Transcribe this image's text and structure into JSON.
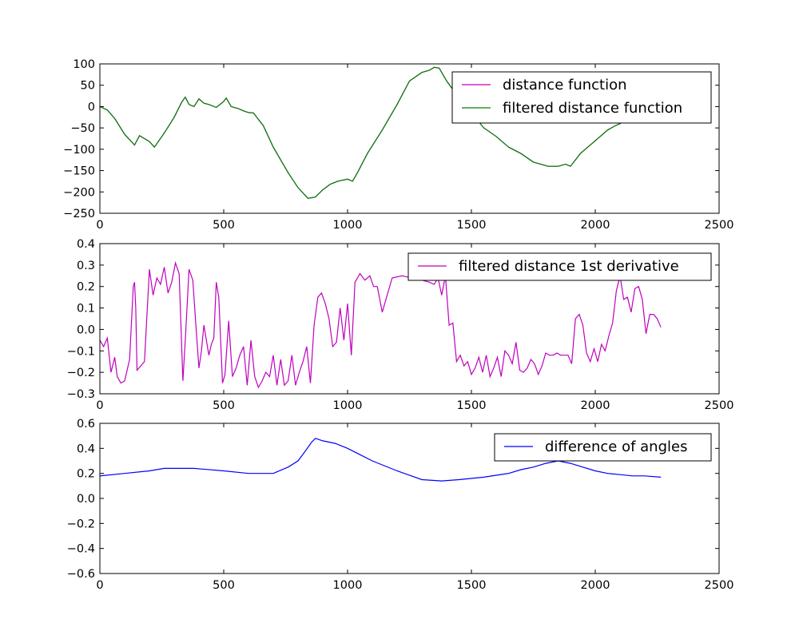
{
  "chart_data": [
    {
      "type": "line",
      "title": "",
      "xlabel": "",
      "ylabel": "",
      "xlim": [
        0,
        2500
      ],
      "ylim": [
        -250,
        100
      ],
      "xticks": [
        "0",
        "500",
        "1000",
        "1500",
        "2000",
        "2500"
      ],
      "yticks": [
        "100",
        "50",
        "0",
        "−50",
        "−100",
        "−150",
        "−200",
        "−250"
      ],
      "legend_position": "top-right",
      "grid": false,
      "series": [
        {
          "name": "distance function",
          "color": "#bf00bf",
          "x": [
            0,
            30,
            60,
            100,
            140,
            160,
            200,
            220,
            260,
            300,
            330,
            345,
            360,
            380,
            400,
            420,
            440,
            470,
            500,
            510,
            530,
            560,
            580,
            600,
            620,
            660,
            700,
            760,
            800,
            840,
            870,
            900,
            930,
            960,
            1000,
            1020,
            1040,
            1080,
            1140,
            1200,
            1250,
            1300,
            1330,
            1350,
            1370,
            1400,
            1450,
            1500,
            1550,
            1600,
            1650,
            1700,
            1750,
            1780,
            1810,
            1850,
            1880,
            1900,
            1940,
            2000,
            2050,
            2080,
            2100,
            2150,
            2200,
            2260
          ],
          "y": [
            0,
            -8,
            -28,
            -65,
            -90,
            -68,
            -82,
            -95,
            -62,
            -25,
            10,
            22,
            5,
            0,
            18,
            8,
            5,
            -2,
            12,
            20,
            0,
            -5,
            -10,
            -14,
            -15,
            -45,
            -95,
            -155,
            -190,
            -215,
            -212,
            -195,
            -182,
            -175,
            -170,
            -175,
            -155,
            -110,
            -55,
            5,
            60,
            80,
            85,
            92,
            90,
            60,
            20,
            -15,
            -50,
            -70,
            -95,
            -110,
            -130,
            -135,
            -140,
            -140,
            -135,
            -140,
            -110,
            -80,
            -55,
            -45,
            -40,
            -20,
            0,
            5
          ]
        },
        {
          "name": "filtered distance function",
          "color": "#008000",
          "x": [
            0,
            30,
            60,
            100,
            140,
            160,
            200,
            220,
            260,
            300,
            330,
            345,
            360,
            380,
            400,
            420,
            440,
            470,
            500,
            510,
            530,
            560,
            580,
            600,
            620,
            660,
            700,
            760,
            800,
            840,
            870,
            900,
            930,
            960,
            1000,
            1020,
            1040,
            1080,
            1140,
            1200,
            1250,
            1300,
            1330,
            1350,
            1370,
            1400,
            1450,
            1500,
            1550,
            1600,
            1650,
            1700,
            1750,
            1780,
            1810,
            1850,
            1880,
            1900,
            1940,
            2000,
            2050,
            2080,
            2100,
            2150,
            2200,
            2260
          ],
          "y": [
            0,
            -8,
            -28,
            -65,
            -90,
            -68,
            -82,
            -95,
            -62,
            -25,
            10,
            22,
            5,
            0,
            18,
            8,
            5,
            -2,
            12,
            20,
            0,
            -5,
            -10,
            -14,
            -15,
            -45,
            -95,
            -155,
            -190,
            -215,
            -212,
            -195,
            -182,
            -175,
            -170,
            -175,
            -155,
            -110,
            -55,
            5,
            60,
            80,
            85,
            92,
            90,
            60,
            20,
            -15,
            -50,
            -70,
            -95,
            -110,
            -130,
            -135,
            -140,
            -140,
            -135,
            -140,
            -110,
            -80,
            -55,
            -45,
            -40,
            -20,
            0,
            5
          ]
        }
      ]
    },
    {
      "type": "line",
      "title": "",
      "xlabel": "",
      "ylabel": "",
      "xlim": [
        0,
        2500
      ],
      "ylim": [
        -0.3,
        0.4
      ],
      "xticks": [
        "0",
        "500",
        "1000",
        "1500",
        "2000",
        "2500"
      ],
      "yticks": [
        "0.4",
        "0.3",
        "0.2",
        "0.1",
        "0.0",
        "−0.1",
        "−0.2",
        "−0.3"
      ],
      "legend_position": "top-right",
      "grid": false,
      "series": [
        {
          "name": "filtered distance 1st derivative",
          "color": "#bf00bf",
          "x": [
            0,
            15,
            30,
            45,
            60,
            70,
            85,
            100,
            120,
            135,
            140,
            145,
            150,
            165,
            180,
            200,
            215,
            230,
            245,
            260,
            275,
            290,
            305,
            320,
            335,
            345,
            360,
            375,
            390,
            400,
            410,
            420,
            440,
            450,
            460,
            470,
            480,
            495,
            505,
            520,
            535,
            550,
            565,
            580,
            595,
            610,
            625,
            640,
            655,
            670,
            685,
            700,
            715,
            730,
            745,
            760,
            775,
            790,
            805,
            820,
            835,
            850,
            865,
            880,
            895,
            910,
            925,
            940,
            955,
            970,
            985,
            1000,
            1015,
            1030,
            1050,
            1070,
            1090,
            1105,
            1120,
            1140,
            1180,
            1220,
            1260,
            1300,
            1330,
            1350,
            1365,
            1380,
            1395,
            1410,
            1425,
            1440,
            1455,
            1470,
            1485,
            1500,
            1515,
            1530,
            1545,
            1560,
            1575,
            1590,
            1605,
            1620,
            1635,
            1650,
            1665,
            1680,
            1695,
            1710,
            1725,
            1740,
            1755,
            1770,
            1785,
            1800,
            1815,
            1830,
            1845,
            1860,
            1875,
            1890,
            1905,
            1920,
            1935,
            1950,
            1965,
            1980,
            1995,
            2010,
            2025,
            2040,
            2055,
            2070,
            2085,
            2100,
            2115,
            2130,
            2145,
            2160,
            2175,
            2190,
            2205,
            2220,
            2235,
            2250,
            2265
          ],
          "y": [
            -0.05,
            -0.08,
            -0.04,
            -0.2,
            -0.13,
            -0.22,
            -0.25,
            -0.24,
            -0.14,
            0.2,
            0.22,
            0.1,
            -0.19,
            -0.17,
            -0.15,
            0.28,
            0.16,
            0.24,
            0.21,
            0.29,
            0.17,
            0.22,
            0.31,
            0.26,
            -0.24,
            -0.05,
            0.28,
            0.23,
            -0.02,
            -0.18,
            -0.1,
            0.02,
            -0.12,
            -0.07,
            -0.04,
            0.22,
            0.15,
            -0.25,
            -0.21,
            0.04,
            -0.22,
            -0.18,
            -0.12,
            -0.08,
            -0.26,
            -0.05,
            -0.22,
            -0.27,
            -0.24,
            -0.2,
            -0.22,
            -0.12,
            -0.26,
            -0.14,
            -0.26,
            -0.24,
            -0.12,
            -0.26,
            -0.2,
            -0.15,
            -0.08,
            -0.25,
            0.02,
            0.15,
            0.17,
            0.12,
            0.05,
            -0.08,
            -0.06,
            0.1,
            -0.05,
            0.12,
            -0.12,
            0.22,
            0.26,
            0.23,
            0.25,
            0.2,
            0.2,
            0.08,
            0.24,
            0.25,
            0.24,
            0.23,
            0.22,
            0.21,
            0.24,
            0.16,
            0.25,
            0.02,
            0.03,
            -0.15,
            -0.12,
            -0.17,
            -0.15,
            -0.21,
            -0.18,
            -0.13,
            -0.2,
            -0.12,
            -0.22,
            -0.18,
            -0.13,
            -0.22,
            -0.1,
            -0.12,
            -0.16,
            -0.06,
            -0.19,
            -0.2,
            -0.18,
            -0.14,
            -0.16,
            -0.21,
            -0.17,
            -0.11,
            -0.12,
            -0.12,
            -0.11,
            -0.12,
            -0.12,
            -0.12,
            -0.16,
            0.05,
            0.07,
            0.02,
            -0.11,
            -0.15,
            -0.09,
            -0.15,
            -0.07,
            -0.1,
            -0.03,
            0.03,
            0.18,
            0.25,
            0.14,
            0.15,
            0.08,
            0.19,
            0.2,
            0.14,
            -0.02,
            0.07,
            0.07,
            0.05,
            0.01
          ]
        }
      ]
    },
    {
      "type": "line",
      "title": "",
      "xlabel": "",
      "ylabel": "",
      "xlim": [
        0,
        2500
      ],
      "ylim": [
        -0.6,
        0.6
      ],
      "xticks": [
        "0",
        "500",
        "1000",
        "1500",
        "2000",
        "2500"
      ],
      "yticks": [
        "0.6",
        "0.4",
        "0.2",
        "0.0",
        "−0.2",
        "−0.4",
        "−0.6"
      ],
      "legend_position": "top-right",
      "grid": false,
      "series": [
        {
          "name": "difference of angles",
          "color": "#0000ff",
          "x": [
            0,
            100,
            200,
            260,
            300,
            380,
            500,
            600,
            700,
            760,
            800,
            830,
            855,
            870,
            900,
            950,
            1000,
            1050,
            1100,
            1200,
            1300,
            1380,
            1450,
            1550,
            1650,
            1700,
            1750,
            1800,
            1850,
            1900,
            1950,
            2000,
            2050,
            2100,
            2150,
            2200,
            2265
          ],
          "y": [
            0.18,
            0.2,
            0.22,
            0.24,
            0.24,
            0.24,
            0.22,
            0.2,
            0.2,
            0.25,
            0.3,
            0.38,
            0.45,
            0.48,
            0.46,
            0.44,
            0.4,
            0.35,
            0.3,
            0.22,
            0.15,
            0.14,
            0.15,
            0.17,
            0.2,
            0.23,
            0.25,
            0.28,
            0.3,
            0.28,
            0.25,
            0.22,
            0.2,
            0.19,
            0.18,
            0.18,
            0.17
          ]
        }
      ]
    }
  ]
}
